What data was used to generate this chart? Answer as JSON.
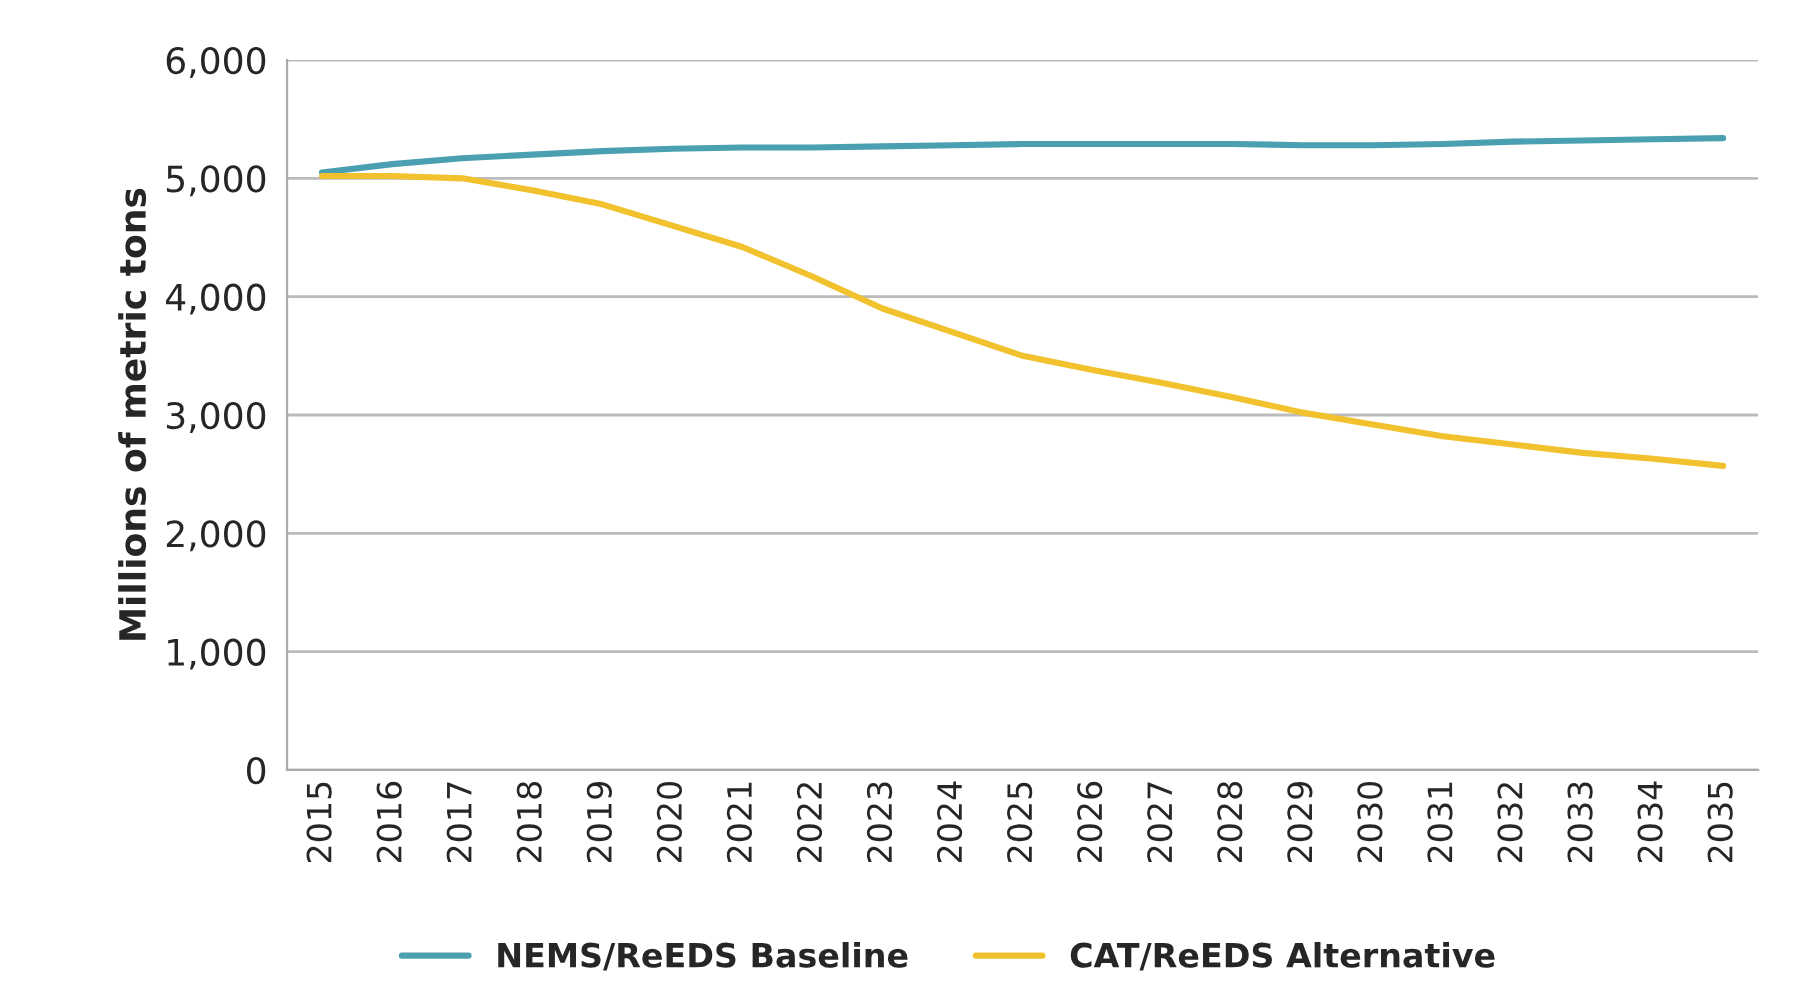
{
  "chart_data": {
    "type": "line",
    "ylabel": "Millions of metric tons",
    "categories": [
      "2015",
      "2016",
      "2017",
      "2018",
      "2019",
      "2020",
      "2021",
      "2022",
      "2023",
      "2024",
      "2025",
      "2026",
      "2027",
      "2028",
      "2029",
      "2030",
      "2031",
      "2032",
      "2033",
      "2034",
      "2035"
    ],
    "series": [
      {
        "name": "NEMS/ReEDS Baseline",
        "color": "#4a9fb0",
        "values": [
          5050,
          5120,
          5170,
          5200,
          5230,
          5250,
          5260,
          5260,
          5270,
          5280,
          5290,
          5290,
          5290,
          5290,
          5280,
          5280,
          5290,
          5310,
          5320,
          5330,
          5340
        ]
      },
      {
        "name": "CAT/ReEDS Alternative",
        "color": "#f2c12e",
        "values": [
          5020,
          5020,
          5000,
          4900,
          4780,
          4600,
          4420,
          4170,
          3900,
          3700,
          3500,
          3380,
          3270,
          3150,
          3020,
          2920,
          2820,
          2750,
          2680,
          2630,
          2570
        ]
      }
    ],
    "ylim": [
      0,
      6000
    ],
    "yticks": [
      {
        "value": 0,
        "label": "0"
      },
      {
        "value": 1000,
        "label": "1,000"
      },
      {
        "value": 2000,
        "label": "2,000"
      },
      {
        "value": 3000,
        "label": "3,000"
      },
      {
        "value": 4000,
        "label": "4,000"
      },
      {
        "value": 5000,
        "label": "5,000"
      },
      {
        "value": 6000,
        "label": "6,000"
      }
    ],
    "grid": "y",
    "legend": "bottom",
    "marker": "none",
    "line_style": "solid"
  }
}
